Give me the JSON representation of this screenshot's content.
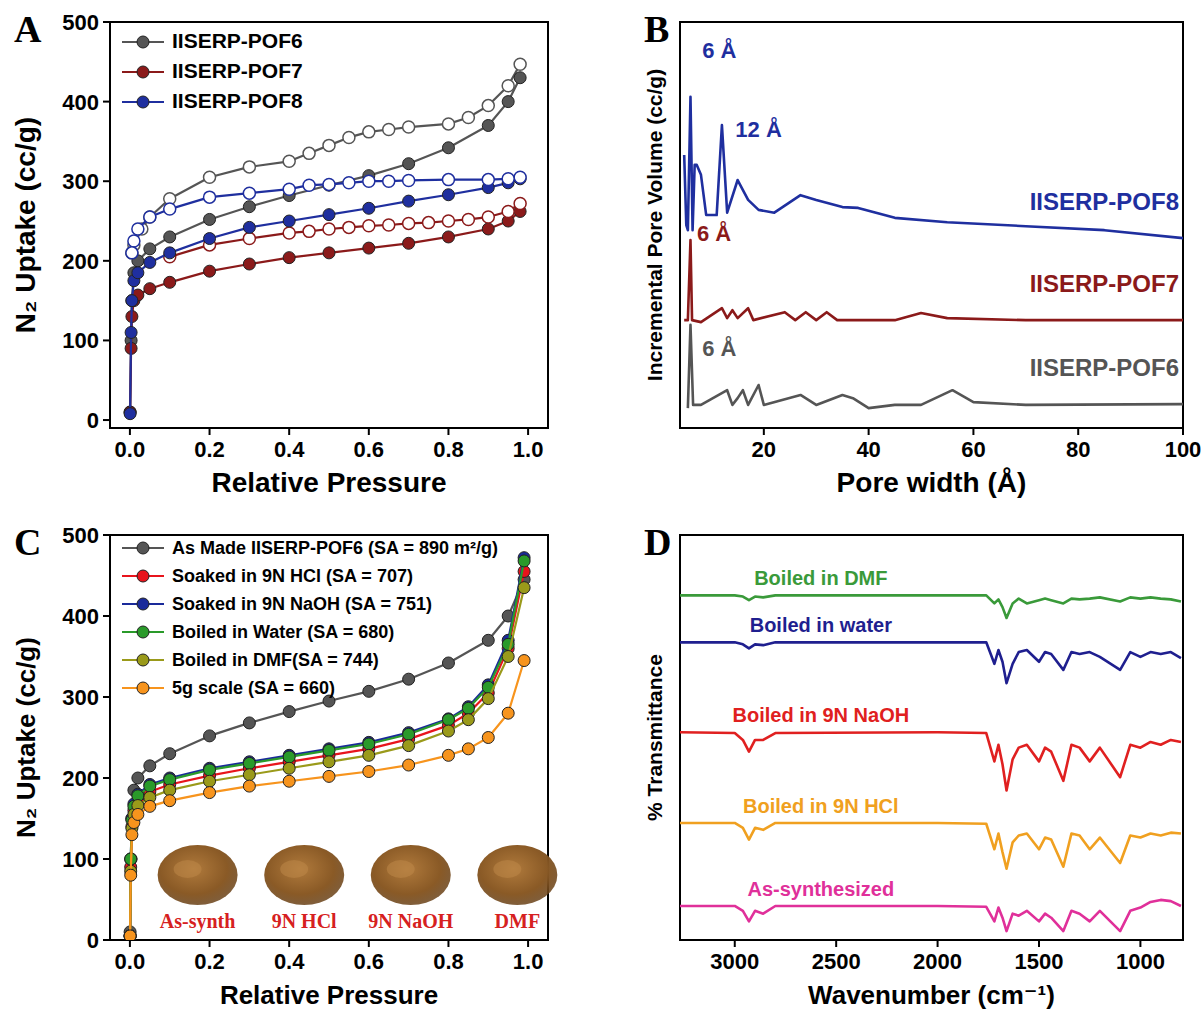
{
  "chart_data": [
    {
      "panel": "A",
      "type": "line",
      "x_label": "Relative Pressure",
      "y_label": "N₂ Uptake (cc/g)",
      "xlim": [
        -0.05,
        1.05
      ],
      "ylim": [
        -10,
        500
      ],
      "xticks": [
        {
          "value": 0,
          "label": "0.0"
        },
        0.2,
        0.4,
        0.6,
        0.8,
        {
          "value": 1,
          "label": "1.0"
        }
      ],
      "yticks": [
        0,
        100,
        200,
        300,
        400,
        500
      ],
      "legend": "upper left",
      "marker": "circle",
      "series": [
        {
          "name": "IISERP-POF6",
          "color": "#555555",
          "x": [
            0.0005,
            0.003,
            0.005,
            0.01,
            0.02,
            0.05,
            0.1,
            0.2,
            0.3,
            0.4,
            0.5,
            0.6,
            0.7,
            0.8,
            0.9,
            0.95,
            0.98
          ],
          "values": [
            10,
            100,
            150,
            185,
            200,
            215,
            230,
            252,
            268,
            282,
            295,
            307,
            322,
            342,
            370,
            400,
            430
          ],
          "desorption": {
            "x": [
              0.98,
              0.95,
              0.9,
              0.85,
              0.8,
              0.7,
              0.65,
              0.6,
              0.55,
              0.5,
              0.45,
              0.4,
              0.3,
              0.2,
              0.1,
              0.05,
              0.03,
              0.01,
              0.005
            ],
            "values": [
              447,
              420,
              395,
              380,
              372,
              368,
              365,
              362,
              355,
              345,
              335,
              325,
              318,
              305,
              278,
              255,
              240,
              220,
              210
            ]
          }
        },
        {
          "name": "IISERP-POF7",
          "color": "#8b1a1a",
          "x": [
            0.0005,
            0.003,
            0.005,
            0.01,
            0.02,
            0.05,
            0.1,
            0.2,
            0.3,
            0.4,
            0.5,
            0.6,
            0.7,
            0.8,
            0.9,
            0.95,
            0.98
          ],
          "values": [
            10,
            90,
            130,
            150,
            157,
            165,
            173,
            187,
            196,
            204,
            210,
            216,
            222,
            230,
            240,
            250,
            262
          ],
          "desorption": {
            "x": [
              0.98,
              0.95,
              0.9,
              0.85,
              0.8,
              0.75,
              0.7,
              0.65,
              0.6,
              0.55,
              0.5,
              0.45,
              0.4,
              0.3,
              0.2,
              0.1
            ],
            "values": [
              272,
              262,
              255,
              252,
              250,
              248,
              247,
              245,
              244,
              242,
              240,
              237,
              235,
              228,
              220,
              205
            ]
          }
        },
        {
          "name": "IISERP-POF8",
          "color": "#1f2f9f",
          "x": [
            0.0005,
            0.003,
            0.005,
            0.01,
            0.02,
            0.05,
            0.1,
            0.2,
            0.3,
            0.4,
            0.5,
            0.6,
            0.7,
            0.8,
            0.9,
            0.95,
            0.98
          ],
          "values": [
            8,
            110,
            150,
            175,
            185,
            198,
            210,
            228,
            242,
            250,
            258,
            266,
            275,
            283,
            292,
            298,
            303
          ],
          "desorption": {
            "x": [
              0.98,
              0.95,
              0.9,
              0.8,
              0.7,
              0.65,
              0.6,
              0.55,
              0.5,
              0.45,
              0.4,
              0.3,
              0.2,
              0.1,
              0.05,
              0.02,
              0.01,
              0.005
            ],
            "values": [
              305,
              303,
              302,
              302,
              301,
              300,
              300,
              298,
              296,
              295,
              290,
              285,
              280,
              265,
              255,
              240,
              225,
              210
            ]
          }
        }
      ]
    },
    {
      "panel": "B",
      "type": "line",
      "x_label": "Pore width (Å)",
      "y_label": "Incremental Pore Volume (cc/g)",
      "xlim": [
        4,
        100
      ],
      "ylim": [
        -2,
        100
      ],
      "xticks": [
        20,
        40,
        60,
        80,
        100
      ],
      "tick_labels": "x",
      "series": [
        {
          "name": "IISERP-POF8",
          "color": "#1f2f9f",
          "x": [
            4.8,
            5.2,
            5.5,
            6,
            6.4,
            6.8,
            7.2,
            8,
            9,
            11,
            12,
            13,
            15,
            17,
            19,
            22,
            27,
            30,
            35,
            38,
            45,
            55,
            70,
            85,
            100
          ],
          "values": [
            66.6,
            49.0,
            47.7,
            81.2,
            47.7,
            64.1,
            64.1,
            61.6,
            51.5,
            51.5,
            74.1,
            52.1,
            60.3,
            55.3,
            52.8,
            52.1,
            56.5,
            55.3,
            53.5,
            53.3,
            50.8,
            49.7,
            48.7,
            47.7,
            45.7
          ]
        },
        {
          "name": "IISERP-POF7",
          "color": "#8b1a1a",
          "x": [
            4.8,
            5.5,
            6,
            6.3,
            8,
            12,
            13,
            14,
            15,
            17,
            18,
            24,
            26,
            28,
            30,
            32,
            34,
            45,
            50,
            55,
            70,
            100
          ],
          "values": [
            25.1,
            25.1,
            45.2,
            25.1,
            24.6,
            28.1,
            25.6,
            27.6,
            25.6,
            28.1,
            25.1,
            27.1,
            25.1,
            27.1,
            25.1,
            27.1,
            25.1,
            25.1,
            26.9,
            25.6,
            25.1,
            25.1
          ]
        },
        {
          "name": "IISERP-POF6",
          "color": "#555555",
          "x": [
            5.5,
            6,
            6.5,
            8,
            13,
            14,
            15,
            16,
            17,
            19,
            20,
            27,
            30,
            35,
            37,
            40,
            45,
            50,
            56,
            60,
            70,
            100
          ],
          "values": [
            3.0,
            23.9,
            3.8,
            3.8,
            7.5,
            3.8,
            5.5,
            7.5,
            3.8,
            8.8,
            3.8,
            6.3,
            3.8,
            6.3,
            5.5,
            3.0,
            3.8,
            3.8,
            7.5,
            4.5,
            3.8,
            4.0
          ]
        }
      ],
      "annotations": [
        {
          "text": "6 Å",
          "x": 11.5,
          "y": 91,
          "color": "#1f2f9f"
        },
        {
          "text": "12 Å",
          "x": 19,
          "y": 71,
          "color": "#1f2f9f"
        },
        {
          "text": "6 Å",
          "x": 10.5,
          "y": 45,
          "color": "#8b1a1a"
        },
        {
          "text": "6 Å",
          "x": 11.5,
          "y": 16,
          "color": "#555555"
        }
      ]
    },
    {
      "panel": "C",
      "type": "line",
      "x_label": "Relative Pressure",
      "y_label": "N₂ Uptake (cc/g)",
      "xlim": [
        -0.05,
        1.05
      ],
      "ylim": [
        0,
        500
      ],
      "xticks": [
        {
          "value": 0,
          "label": "0.0"
        },
        0.2,
        0.4,
        0.6,
        0.8,
        {
          "value": 1,
          "label": "1.0"
        }
      ],
      "yticks": [
        0,
        100,
        200,
        300,
        400,
        500
      ],
      "legend": "upper left",
      "marker": "circle",
      "series": [
        {
          "name": "As Made IISERP-POF6 (SA = 890 m²/g)",
          "color": "#555555",
          "x": [
            0.0005,
            0.003,
            0.005,
            0.01,
            0.02,
            0.05,
            0.1,
            0.2,
            0.3,
            0.4,
            0.5,
            0.6,
            0.7,
            0.8,
            0.9,
            0.95,
            0.99
          ],
          "values": [
            10,
            100,
            150,
            185,
            200,
            215,
            230,
            252,
            268,
            282,
            295,
            307,
            322,
            342,
            370,
            400,
            445
          ]
        },
        {
          "name": "Soaked in 9N HCl (SA = 707)",
          "color": "#e8141c",
          "x": [
            0.0005,
            0.002,
            0.005,
            0.01,
            0.02,
            0.05,
            0.1,
            0.2,
            0.3,
            0.4,
            0.5,
            0.6,
            0.7,
            0.8,
            0.85,
            0.9,
            0.95,
            0.99
          ],
          "values": [
            5,
            90,
            140,
            160,
            172,
            183,
            192,
            203,
            212,
            220,
            228,
            236,
            248,
            265,
            280,
            305,
            360,
            455
          ]
        },
        {
          "name": "Soaked in 9N NaOH (SA = 751)",
          "color": "#1a2a9a",
          "x": [
            0.0005,
            0.002,
            0.005,
            0.01,
            0.02,
            0.05,
            0.1,
            0.2,
            0.3,
            0.4,
            0.5,
            0.6,
            0.7,
            0.8,
            0.85,
            0.9,
            0.95,
            0.99
          ],
          "values": [
            5,
            100,
            150,
            168,
            180,
            192,
            200,
            212,
            220,
            228,
            236,
            244,
            256,
            273,
            288,
            315,
            370,
            472
          ]
        },
        {
          "name": "Boiled in Water (SA = 680)",
          "color": "#2a9a2a",
          "x": [
            0.0005,
            0.002,
            0.005,
            0.01,
            0.02,
            0.05,
            0.1,
            0.2,
            0.3,
            0.4,
            0.5,
            0.6,
            0.7,
            0.8,
            0.85,
            0.9,
            0.95,
            0.99
          ],
          "values": [
            5,
            100,
            148,
            165,
            178,
            190,
            198,
            210,
            218,
            226,
            234,
            242,
            254,
            272,
            286,
            312,
            365,
            468
          ]
        },
        {
          "name": "Boiled in DMF(SA = 744)",
          "color": "#9a9a1a",
          "x": [
            0.0005,
            0.002,
            0.005,
            0.01,
            0.02,
            0.05,
            0.1,
            0.2,
            0.3,
            0.4,
            0.5,
            0.6,
            0.7,
            0.8,
            0.85,
            0.9,
            0.95,
            0.99
          ],
          "values": [
            5,
            85,
            138,
            155,
            166,
            176,
            185,
            196,
            204,
            212,
            220,
            228,
            240,
            258,
            272,
            298,
            350,
            435
          ]
        },
        {
          "name": "5g scale (SA = 660)",
          "color": "#f7941d",
          "x": [
            0.0005,
            0.002,
            0.005,
            0.01,
            0.02,
            0.05,
            0.1,
            0.2,
            0.3,
            0.4,
            0.5,
            0.6,
            0.7,
            0.8,
            0.85,
            0.9,
            0.95,
            0.99
          ],
          "values": [
            5,
            80,
            130,
            145,
            155,
            165,
            172,
            182,
            190,
            196,
            202,
            208,
            216,
            228,
            236,
            250,
            280,
            345
          ]
        }
      ],
      "photo_labels": [
        "As-synth",
        "9N HCl",
        "9N NaOH",
        "DMF"
      ]
    },
    {
      "panel": "D",
      "type": "line",
      "x_label": "Wavenumber (cm⁻¹)",
      "y_label": "% Transmittance",
      "xlim": [
        3270,
        790
      ],
      "ylim": [
        0,
        100
      ],
      "xticks": [
        3000,
        2500,
        2000,
        1500,
        1000
      ],
      "tick_labels": "x",
      "x": [
        3270,
        3000,
        2960,
        2930,
        2900,
        2860,
        2800,
        2000,
        1760,
        1720,
        1700,
        1680,
        1660,
        1630,
        1600,
        1560,
        1500,
        1470,
        1440,
        1380,
        1340,
        1300,
        1250,
        1200,
        1100,
        1050,
        1000,
        950,
        900,
        850,
        800
      ],
      "series": [
        {
          "name": "Boiled in DMF",
          "color": "#3a9a3a",
          "values": [
            85.1,
            85.1,
            84.8,
            83.9,
            84.8,
            84.6,
            85.1,
            85.1,
            85.1,
            83.1,
            84.1,
            82.2,
            79.5,
            83.1,
            84.3,
            83.1,
            83.9,
            84.3,
            83.9,
            83.1,
            84.3,
            84.1,
            84.3,
            84.6,
            83.6,
            84.6,
            84.3,
            84.6,
            84.3,
            84.1,
            83.6
          ]
        },
        {
          "name": "Boiled in water",
          "color": "#1f1f8f",
          "values": [
            73.5,
            73.5,
            73.0,
            72.0,
            73.0,
            72.8,
            73.5,
            73.5,
            73.5,
            68.2,
            71.6,
            68.7,
            63.4,
            68.2,
            71.1,
            71.6,
            68.7,
            71.1,
            70.6,
            66.7,
            71.1,
            70.6,
            71.1,
            69.9,
            66.7,
            71.1,
            69.9,
            71.1,
            70.6,
            71.1,
            69.6
          ]
        },
        {
          "name": "Boiled in 9N NaOH",
          "color": "#e02020",
          "values": [
            51.3,
            51.1,
            49.4,
            46.5,
            49.4,
            49.4,
            51.1,
            51.3,
            51.1,
            44.1,
            48.2,
            43.4,
            36.9,
            44.6,
            47.5,
            48.2,
            44.1,
            47.5,
            46.5,
            39.3,
            48.2,
            47.5,
            44.1,
            47.5,
            40.2,
            48.2,
            47.5,
            48.9,
            48.2,
            49.4,
            48.9
          ]
        },
        {
          "name": "Boiled in 9N HCl",
          "color": "#f0a020",
          "values": [
            28.9,
            28.9,
            27.7,
            24.8,
            27.7,
            27.2,
            28.9,
            28.9,
            28.7,
            22.4,
            26.3,
            21.7,
            17.6,
            24.1,
            25.8,
            26.3,
            22.4,
            25.3,
            24.8,
            18.1,
            26.3,
            25.8,
            22.4,
            25.3,
            19.0,
            25.8,
            25.3,
            26.3,
            25.8,
            26.5,
            26.3
          ]
        },
        {
          "name": "As-synthesized",
          "color": "#e0309a",
          "values": [
            8.4,
            8.4,
            7.2,
            4.6,
            7.2,
            6.5,
            8.4,
            8.4,
            8.2,
            4.6,
            8.0,
            5.5,
            2.2,
            6.5,
            6.0,
            7.2,
            4.6,
            6.5,
            5.5,
            2.2,
            7.2,
            6.5,
            4.6,
            7.2,
            2.2,
            7.2,
            8.0,
            9.4,
            9.9,
            9.6,
            8.4
          ]
        }
      ]
    }
  ]
}
